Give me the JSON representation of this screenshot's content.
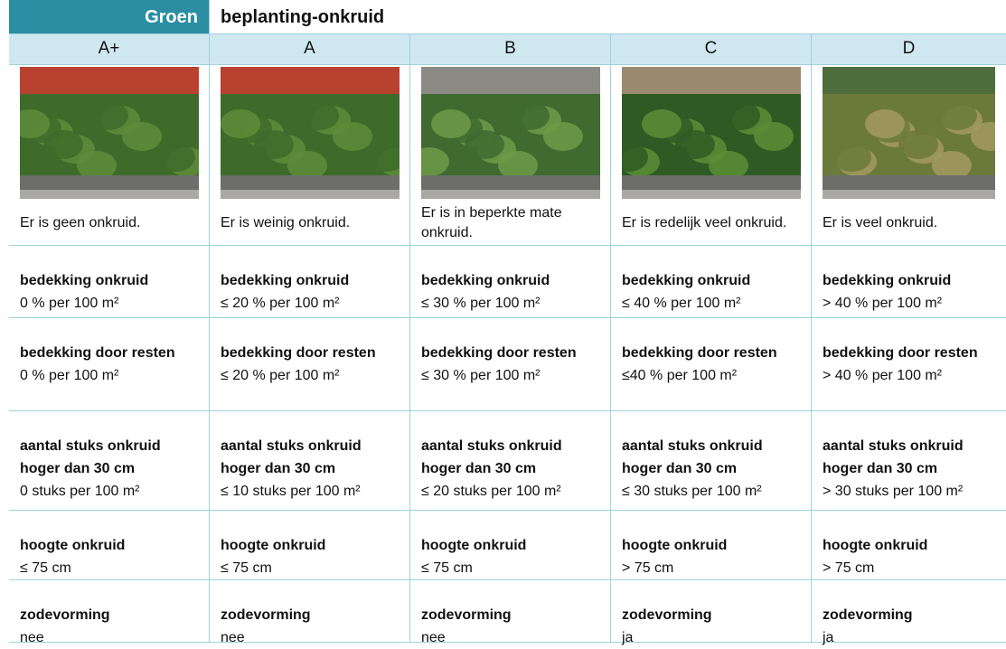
{
  "header": {
    "category": "Groen",
    "title": "beplanting-onkruid"
  },
  "columns": [
    {
      "grade": "A+",
      "description": "Er is geen onkruid."
    },
    {
      "grade": "A",
      "description": "Er is weinig onkruid."
    },
    {
      "grade": "B",
      "description": "Er is in beperkte mate onkruid."
    },
    {
      "grade": "C",
      "description": "Er is redelijk veel onkruid."
    },
    {
      "grade": "D",
      "description": "Er is veel onkruid."
    }
  ],
  "criteria": [
    {
      "label": "bedekking onkruid",
      "values": [
        "0 % per 100 m²",
        "≤ 20 % per 100 m²",
        "≤ 30 % per 100 m²",
        "≤ 40 % per 100 m²",
        "> 40 % per 100 m²"
      ]
    },
    {
      "label": "bedekking door resten",
      "values": [
        "0 % per 100 m²",
        "≤ 20 % per 100 m²",
        "≤ 30 % per 100 m²",
        "≤40 % per 100 m²",
        "> 40 % per 100 m²"
      ]
    },
    {
      "label": "aantal stuks onkruid hoger dan 30 cm",
      "values": [
        "0 stuks per 100 m²",
        "≤ 10 stuks per 100 m²",
        "≤ 20 stuks per 100 m²",
        "≤ 30 stuks per 100 m²",
        "> 30 stuks per 100 m²"
      ]
    },
    {
      "label": "hoogte onkruid",
      "values": [
        "≤ 75 cm",
        "≤ 75 cm",
        "≤ 75 cm",
        "> 75 cm",
        "> 75 cm"
      ]
    },
    {
      "label": "zodevorming",
      "values": [
        "nee",
        "nee",
        "nee",
        "ja",
        "ja"
      ]
    }
  ]
}
